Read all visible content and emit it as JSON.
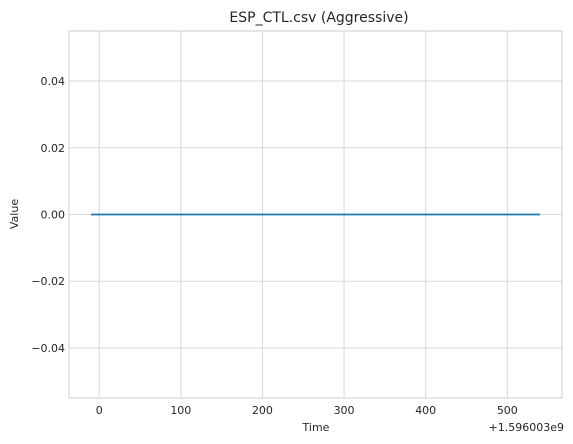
{
  "chart_data": {
    "type": "line",
    "title": "ESP_CTL.csv (Aggressive)",
    "xlabel": "Time",
    "ylabel": "Value",
    "x_offset_label": "+1.596003e9",
    "xlim": [
      -37,
      567
    ],
    "ylim": [
      -0.055,
      0.055
    ],
    "xticks": [
      0,
      100,
      200,
      300,
      400,
      500
    ],
    "xtick_labels": [
      "0",
      "100",
      "200",
      "300",
      "400",
      "500"
    ],
    "yticks": [
      -0.04,
      -0.02,
      0.0,
      0.02,
      0.04
    ],
    "ytick_labels": [
      "−0.04",
      "−0.02",
      "0.00",
      "0.02",
      "0.04"
    ],
    "grid": true,
    "series": [
      {
        "color": "#1f77b4",
        "x": [
          -10,
          540
        ],
        "y": [
          0,
          0
        ]
      }
    ]
  }
}
